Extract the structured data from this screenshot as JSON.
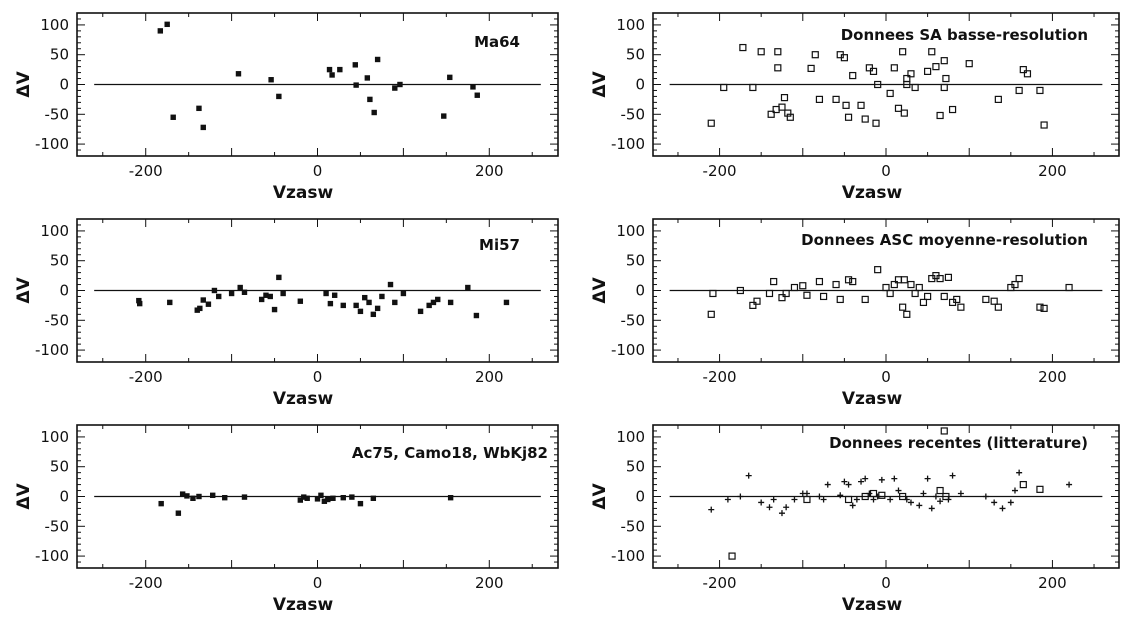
{
  "chart_data": [
    {
      "type": "scatter",
      "label": "Ma64",
      "xlabel": "Vzasw",
      "ylabel": "ΔV",
      "xlim": [
        -280,
        280
      ],
      "ylim": [
        -120,
        120
      ],
      "xticks": [
        -200,
        0,
        200
      ],
      "yticks": [
        100,
        50,
        0,
        -50,
        -100
      ],
      "marker": "filled-square",
      "points": [
        [
          -183,
          90
        ],
        [
          -175,
          101
        ],
        [
          -168,
          -55
        ],
        [
          -138,
          -40
        ],
        [
          -133,
          -72
        ],
        [
          -92,
          18
        ],
        [
          -54,
          8
        ],
        [
          -45,
          -20
        ],
        [
          14,
          25
        ],
        [
          17,
          16
        ],
        [
          26,
          25
        ],
        [
          44,
          33
        ],
        [
          45,
          -1
        ],
        [
          58,
          11
        ],
        [
          61,
          -25
        ],
        [
          66,
          -47
        ],
        [
          70,
          42
        ],
        [
          90,
          -6
        ],
        [
          96,
          0
        ],
        [
          147,
          -53
        ],
        [
          154,
          12
        ],
        [
          181,
          -4
        ],
        [
          186,
          -18
        ]
      ]
    },
    {
      "type": "scatter",
      "label": "Donnees SA basse-resolution",
      "xlabel": "Vzasw",
      "ylabel": "ΔV",
      "xlim": [
        -280,
        280
      ],
      "ylim": [
        -120,
        120
      ],
      "xticks": [
        -200,
        0,
        200
      ],
      "yticks": [
        100,
        50,
        0,
        -50,
        -100
      ],
      "marker": "open-square",
      "points": [
        [
          -210,
          -65
        ],
        [
          -195,
          -5
        ],
        [
          -172,
          62
        ],
        [
          -160,
          -5
        ],
        [
          -150,
          55
        ],
        [
          -130,
          55
        ],
        [
          -130,
          28
        ],
        [
          -122,
          -22
        ],
        [
          -118,
          -48
        ],
        [
          -115,
          -55
        ],
        [
          -125,
          -38
        ],
        [
          -132,
          -42
        ],
        [
          -138,
          -50
        ],
        [
          -90,
          27
        ],
        [
          -85,
          50
        ],
        [
          -80,
          -25
        ],
        [
          -60,
          -25
        ],
        [
          -55,
          50
        ],
        [
          -50,
          45
        ],
        [
          -48,
          -35
        ],
        [
          -45,
          -55
        ],
        [
          -40,
          15
        ],
        [
          -30,
          -35
        ],
        [
          -25,
          -58
        ],
        [
          -20,
          28
        ],
        [
          -15,
          22
        ],
        [
          -12,
          -65
        ],
        [
          -10,
          0
        ],
        [
          5,
          -15
        ],
        [
          10,
          28
        ],
        [
          15,
          -40
        ],
        [
          20,
          55
        ],
        [
          22,
          -48
        ],
        [
          25,
          10
        ],
        [
          25,
          0
        ],
        [
          30,
          18
        ],
        [
          35,
          -5
        ],
        [
          50,
          22
        ],
        [
          55,
          55
        ],
        [
          60,
          30
        ],
        [
          65,
          -52
        ],
        [
          70,
          -5
        ],
        [
          70,
          40
        ],
        [
          72,
          10
        ],
        [
          80,
          -42
        ],
        [
          100,
          35
        ],
        [
          135,
          -25
        ],
        [
          160,
          -10
        ],
        [
          165,
          25
        ],
        [
          170,
          18
        ],
        [
          185,
          -10
        ],
        [
          190,
          -68
        ]
      ]
    },
    {
      "type": "scatter",
      "label": "Mi57",
      "xlabel": "Vzasw",
      "ylabel": "ΔV",
      "xlim": [
        -280,
        280
      ],
      "ylim": [
        -120,
        120
      ],
      "xticks": [
        -200,
        0,
        200
      ],
      "yticks": [
        100,
        50,
        0,
        -50,
        -100
      ],
      "marker": "filled-square",
      "points": [
        [
          -208,
          -17
        ],
        [
          -207,
          -22
        ],
        [
          -172,
          -20
        ],
        [
          -140,
          -33
        ],
        [
          -137,
          -30
        ],
        [
          -133,
          -16
        ],
        [
          -127,
          -23
        ],
        [
          -120,
          0
        ],
        [
          -115,
          -10
        ],
        [
          -100,
          -5
        ],
        [
          -90,
          5
        ],
        [
          -85,
          -3
        ],
        [
          -65,
          -15
        ],
        [
          -60,
          -8
        ],
        [
          -55,
          -10
        ],
        [
          -50,
          -32
        ],
        [
          -45,
          22
        ],
        [
          -40,
          -5
        ],
        [
          -20,
          -18
        ],
        [
          10,
          -5
        ],
        [
          15,
          -22
        ],
        [
          20,
          -8
        ],
        [
          30,
          -25
        ],
        [
          45,
          -25
        ],
        [
          50,
          -35
        ],
        [
          55,
          -12
        ],
        [
          60,
          -20
        ],
        [
          65,
          -40
        ],
        [
          70,
          -30
        ],
        [
          75,
          -10
        ],
        [
          85,
          10
        ],
        [
          90,
          -20
        ],
        [
          100,
          -5
        ],
        [
          120,
          -35
        ],
        [
          130,
          -25
        ],
        [
          135,
          -20
        ],
        [
          140,
          -15
        ],
        [
          155,
          -20
        ],
        [
          175,
          5
        ],
        [
          185,
          -42
        ],
        [
          220,
          -20
        ]
      ]
    },
    {
      "type": "scatter",
      "label": "Donnees ASC moyenne-resolution",
      "xlabel": "Vzasw",
      "ylabel": "ΔV",
      "xlim": [
        -280,
        280
      ],
      "ylim": [
        -120,
        120
      ],
      "xticks": [
        -200,
        0,
        200
      ],
      "yticks": [
        100,
        50,
        0,
        -50,
        -100
      ],
      "marker": "open-square",
      "points": [
        [
          -210,
          -40
        ],
        [
          -208,
          -5
        ],
        [
          -175,
          0
        ],
        [
          -160,
          -25
        ],
        [
          -155,
          -18
        ],
        [
          -140,
          -5
        ],
        [
          -135,
          15
        ],
        [
          -125,
          -12
        ],
        [
          -120,
          -5
        ],
        [
          -110,
          5
        ],
        [
          -100,
          8
        ],
        [
          -95,
          -8
        ],
        [
          -80,
          15
        ],
        [
          -75,
          -10
        ],
        [
          -60,
          10
        ],
        [
          -55,
          -15
        ],
        [
          -45,
          18
        ],
        [
          -40,
          15
        ],
        [
          -25,
          -15
        ],
        [
          -10,
          35
        ],
        [
          0,
          5
        ],
        [
          5,
          -5
        ],
        [
          10,
          10
        ],
        [
          15,
          18
        ],
        [
          20,
          -28
        ],
        [
          22,
          18
        ],
        [
          25,
          -40
        ],
        [
          30,
          10
        ],
        [
          35,
          -5
        ],
        [
          40,
          5
        ],
        [
          45,
          -20
        ],
        [
          50,
          -10
        ],
        [
          55,
          20
        ],
        [
          60,
          25
        ],
        [
          65,
          20
        ],
        [
          70,
          -10
        ],
        [
          75,
          22
        ],
        [
          80,
          -20
        ],
        [
          85,
          -15
        ],
        [
          90,
          -28
        ],
        [
          120,
          -15
        ],
        [
          130,
          -18
        ],
        [
          135,
          -28
        ],
        [
          150,
          5
        ],
        [
          155,
          10
        ],
        [
          160,
          20
        ],
        [
          185,
          -28
        ],
        [
          190,
          -30
        ],
        [
          220,
          5
        ]
      ]
    },
    {
      "type": "scatter",
      "label": "Ac75, Camo18, WbKj82",
      "xlabel": "Vzasw",
      "ylabel": "ΔV",
      "xlim": [
        -280,
        280
      ],
      "ylim": [
        -120,
        120
      ],
      "xticks": [
        -200,
        0,
        200
      ],
      "yticks": [
        100,
        50,
        0,
        -50,
        -100
      ],
      "marker": "filled-square",
      "points": [
        [
          -182,
          -12
        ],
        [
          -162,
          -28
        ],
        [
          -157,
          4
        ],
        [
          -152,
          1
        ],
        [
          -145,
          -3
        ],
        [
          -138,
          0
        ],
        [
          -122,
          2
        ],
        [
          -108,
          -2
        ],
        [
          -85,
          -1
        ],
        [
          -20,
          -6
        ],
        [
          -16,
          -1
        ],
        [
          -12,
          -3
        ],
        [
          0,
          -4
        ],
        [
          4,
          2
        ],
        [
          8,
          -8
        ],
        [
          12,
          -5
        ],
        [
          18,
          -3
        ],
        [
          30,
          -2
        ],
        [
          40,
          -1
        ],
        [
          50,
          -12
        ],
        [
          65,
          -3
        ],
        [
          155,
          -2
        ]
      ]
    },
    {
      "type": "scatter",
      "label": "Donnees recentes (litterature)",
      "xlabel": "Vzasw",
      "ylabel": "ΔV",
      "xlim": [
        -280,
        280
      ],
      "ylim": [
        -120,
        120
      ],
      "xticks": [
        -200,
        0,
        200
      ],
      "yticks": [
        100,
        50,
        0,
        -50,
        -100
      ],
      "series": [
        {
          "marker": "open-square",
          "points": [
            [
              -185,
              -100
            ],
            [
              -95,
              -5
            ],
            [
              -45,
              -5
            ],
            [
              -25,
              0
            ],
            [
              -15,
              5
            ],
            [
              -5,
              2
            ],
            [
              20,
              0
            ],
            [
              65,
              10
            ],
            [
              70,
              110
            ],
            [
              72,
              0
            ],
            [
              165,
              20
            ],
            [
              185,
              12
            ]
          ]
        },
        {
          "marker": "cross",
          "points": [
            [
              -210,
              -22
            ],
            [
              -190,
              -5
            ],
            [
              -175,
              0
            ],
            [
              -165,
              35
            ],
            [
              -150,
              -10
            ],
            [
              -140,
              -18
            ],
            [
              -135,
              -5
            ],
            [
              -125,
              -28
            ],
            [
              -120,
              -18
            ],
            [
              -110,
              -5
            ],
            [
              -100,
              5
            ],
            [
              -95,
              5
            ],
            [
              -80,
              0
            ],
            [
              -75,
              -5
            ],
            [
              -70,
              20
            ],
            [
              -55,
              2
            ],
            [
              -50,
              25
            ],
            [
              -45,
              20
            ],
            [
              -40,
              -15
            ],
            [
              -35,
              -5
            ],
            [
              -30,
              25
            ],
            [
              -25,
              30
            ],
            [
              -20,
              5
            ],
            [
              -15,
              -5
            ],
            [
              -10,
              0
            ],
            [
              -5,
              28
            ],
            [
              5,
              -5
            ],
            [
              10,
              30
            ],
            [
              15,
              10
            ],
            [
              25,
              -5
            ],
            [
              30,
              -10
            ],
            [
              40,
              -15
            ],
            [
              45,
              5
            ],
            [
              50,
              30
            ],
            [
              55,
              -20
            ],
            [
              60,
              0
            ],
            [
              65,
              -8
            ],
            [
              75,
              -5
            ],
            [
              80,
              35
            ],
            [
              90,
              5
            ],
            [
              120,
              0
            ],
            [
              130,
              -10
            ],
            [
              140,
              -20
            ],
            [
              150,
              -10
            ],
            [
              155,
              10
            ],
            [
              160,
              40
            ],
            [
              220,
              20
            ]
          ]
        }
      ]
    }
  ]
}
